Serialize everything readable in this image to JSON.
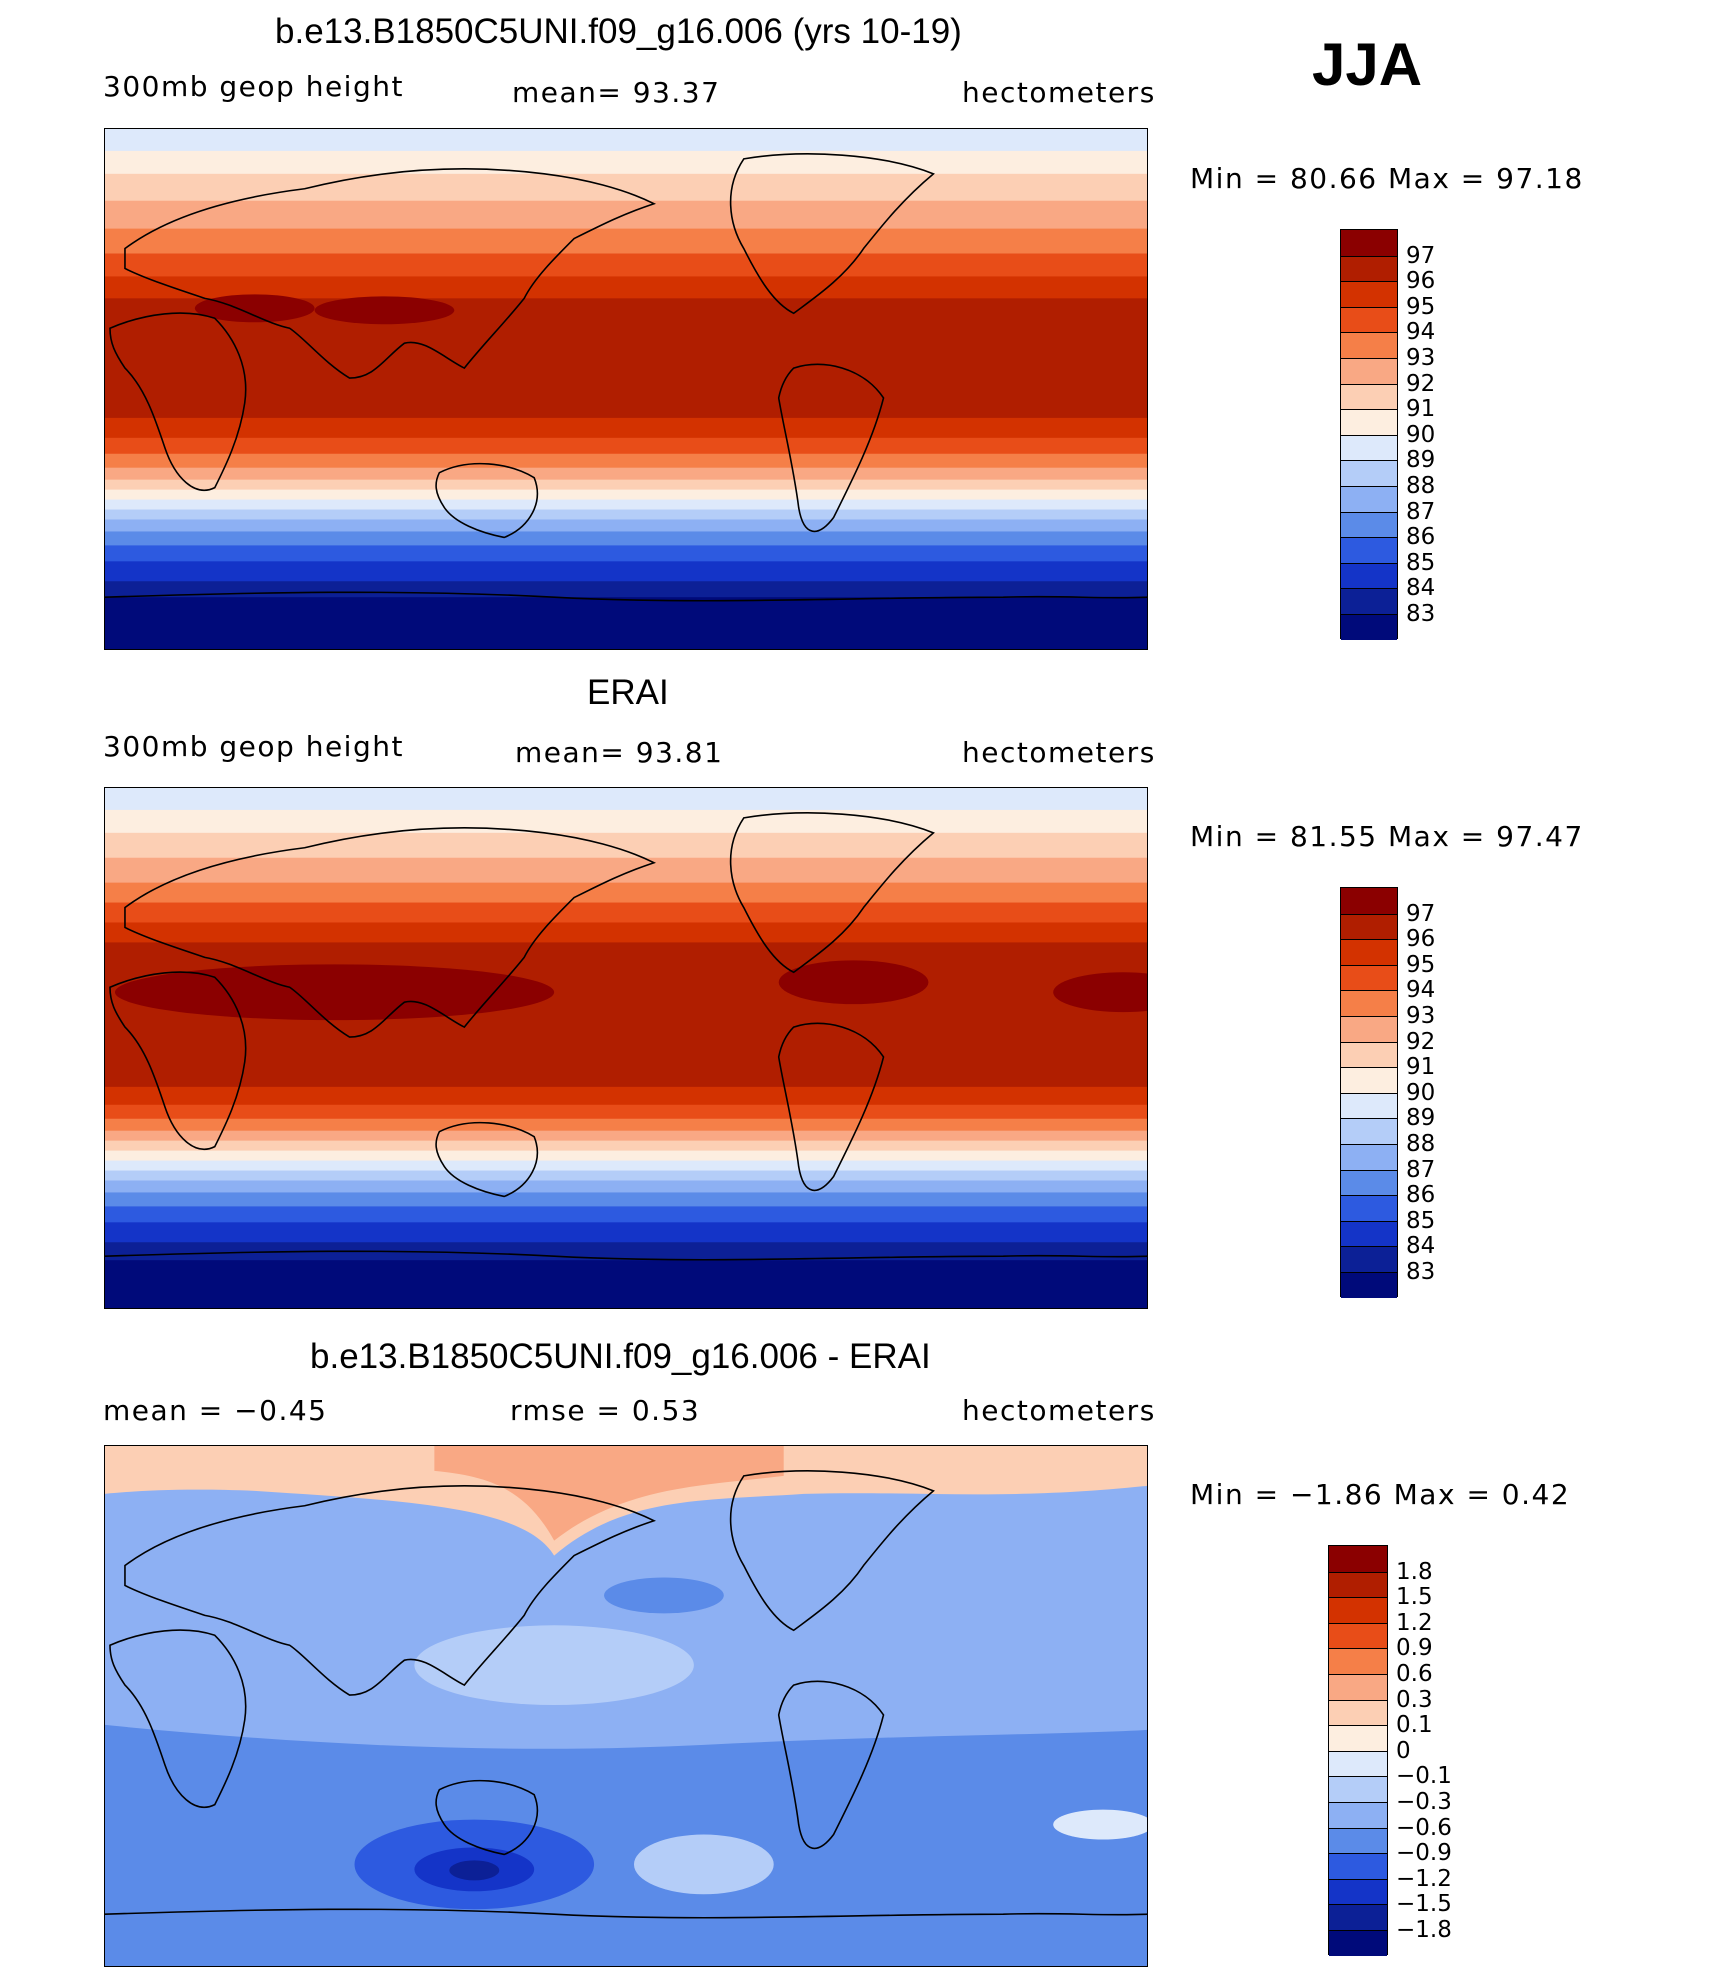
{
  "season": "JJA",
  "panels": [
    {
      "id": "model",
      "title": "b.e13.B1850C5UNI.f09_g16.006 (yrs 10-19)",
      "left_label": "300mb  geop  height",
      "center_label": "mean=   93.37",
      "right_label": "hectometers",
      "minmax": "Min  =   80.66  Max  =   97.18",
      "colorbar_labels": [
        "97",
        "96",
        "95",
        "94",
        "93",
        "92",
        "91",
        "90",
        "89",
        "88",
        "87",
        "86",
        "85",
        "84",
        "83"
      ]
    },
    {
      "id": "obs",
      "title": "ERAI",
      "left_label": "300mb  geop  height",
      "center_label": "mean=   93.81",
      "right_label": "hectometers",
      "minmax": "Min  =   81.55  Max  =   97.47",
      "colorbar_labels": [
        "97",
        "96",
        "95",
        "94",
        "93",
        "92",
        "91",
        "90",
        "89",
        "88",
        "87",
        "86",
        "85",
        "84",
        "83"
      ]
    },
    {
      "id": "diff",
      "title": "b.e13.B1850C5UNI.f09_g16.006 - ERAI",
      "left_label": "mean  =   −0.45",
      "center_label": "rmse  =     0.53",
      "right_label": "hectometers",
      "minmax": "Min  =   −1.86  Max  =     0.42",
      "colorbar_labels": [
        "1.8",
        "1.5",
        "1.2",
        "0.9",
        "0.6",
        "0.3",
        "0.1",
        "0",
        "−0.1",
        "−0.3",
        "−0.6",
        "−0.9",
        "−1.2",
        "−1.5",
        "−1.8"
      ]
    }
  ],
  "colors": {
    "field": [
      "#8b0000",
      "#b01e00",
      "#d33200",
      "#e84d18",
      "#f57f48",
      "#f9a884",
      "#fccfb4",
      "#fdeee0",
      "#dde9fb",
      "#b4cdf8",
      "#8db0f3",
      "#5b8be8",
      "#2d5ae0",
      "#1434c8",
      "#0c2096",
      "#000a7a"
    ],
    "diff": [
      "#8b0000",
      "#b01e00",
      "#d33200",
      "#e84d18",
      "#f57f48",
      "#f9a884",
      "#fccfb4",
      "#fdeee0",
      "#dde9fb",
      "#b4cdf8",
      "#8db0f3",
      "#5b8be8",
      "#2d5ae0",
      "#1434c8",
      "#0c2096",
      "#000a7a"
    ]
  }
}
